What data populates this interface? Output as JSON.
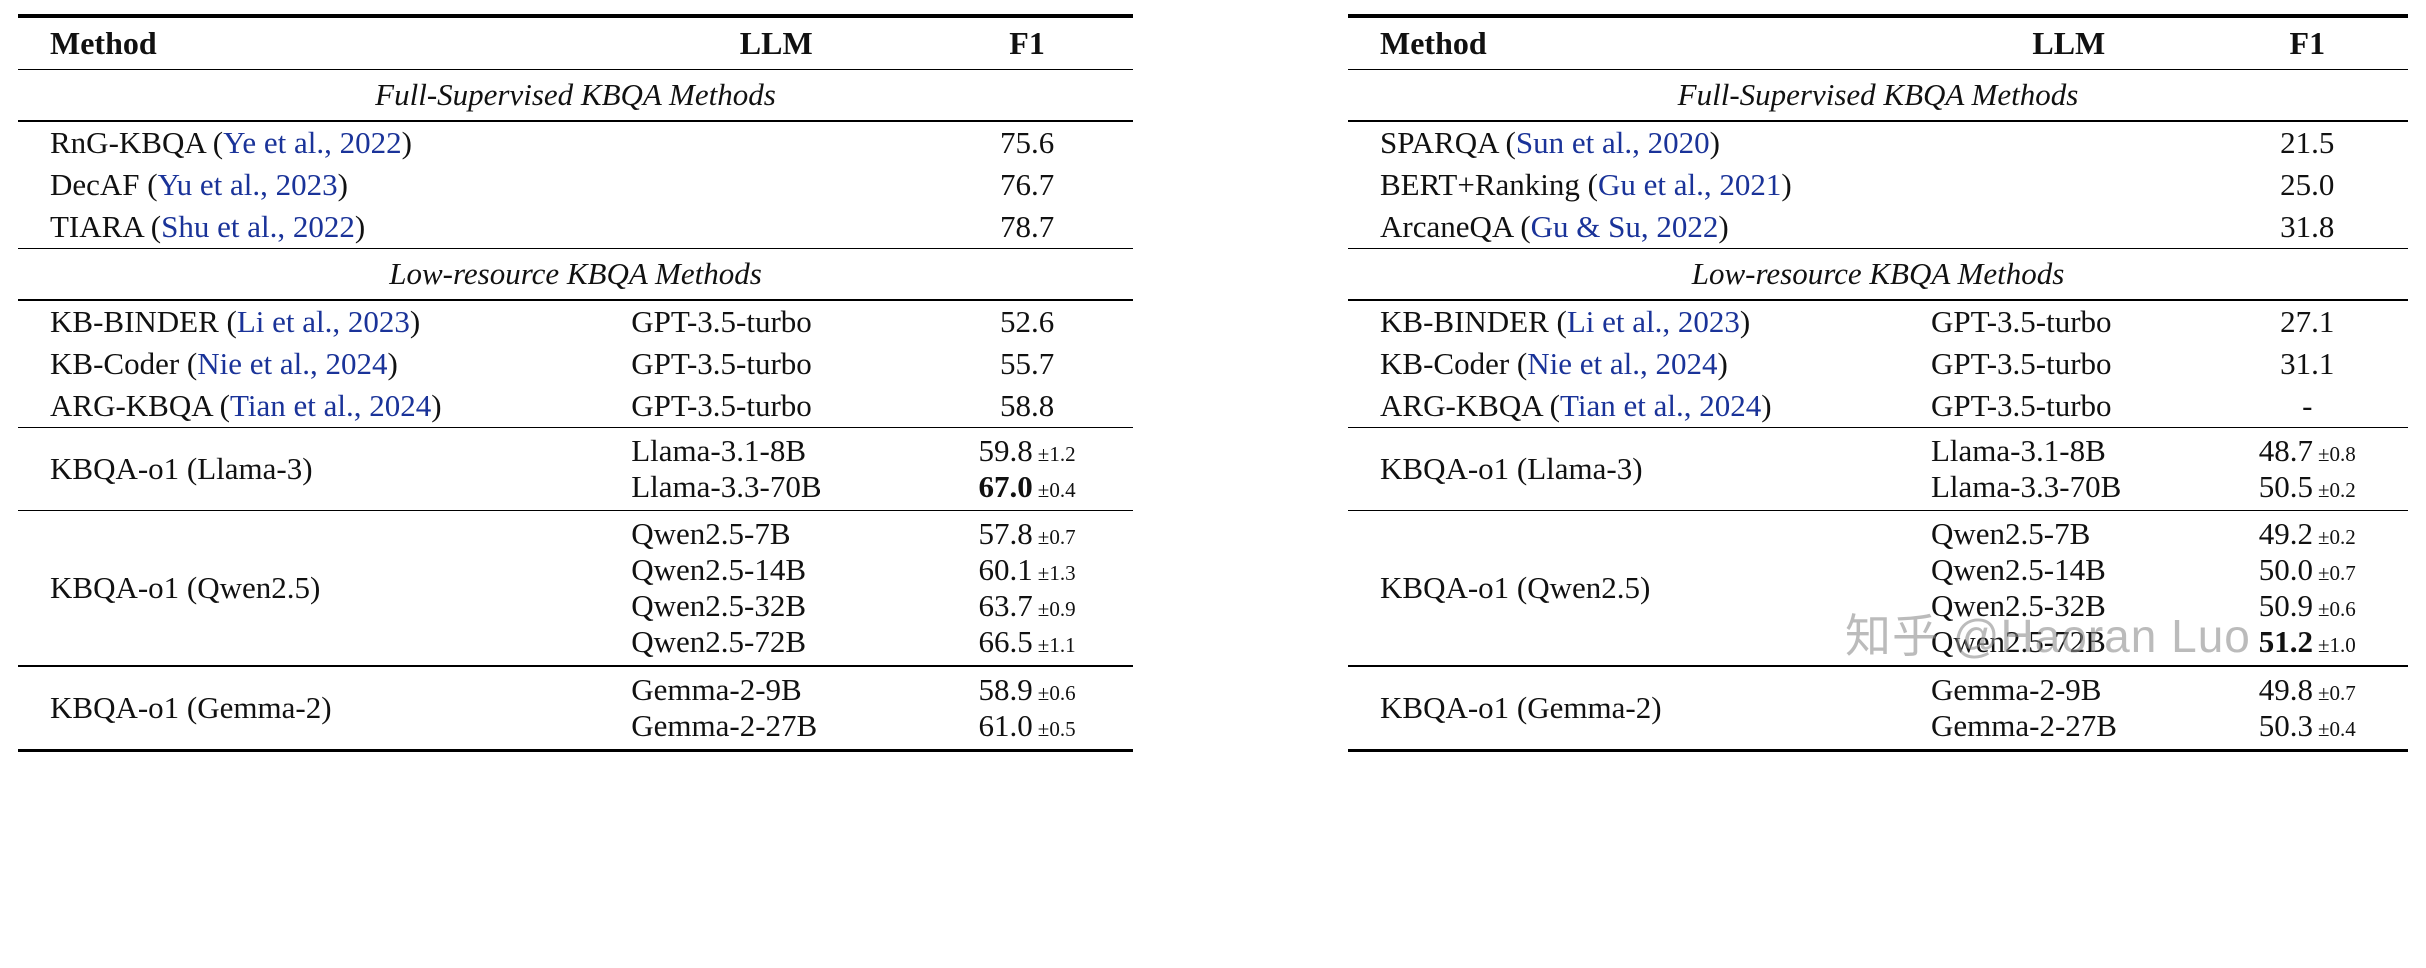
{
  "colors": {
    "cite": "#1a3399",
    "rule": "#000000"
  },
  "watermark": {
    "text": "知乎 @Haoran Luo"
  },
  "tables": [
    {
      "id": "left",
      "headers": [
        "Method",
        "LLM",
        "F1"
      ],
      "sections": [
        {
          "type": "title",
          "text": "Full-Supervised KBQA Methods"
        },
        {
          "type": "rows",
          "rows": [
            {
              "method": "RnG-KBQA",
              "cite": "Ye et al., 2022",
              "llm": [],
              "f1": [
                {
                  "v": "75.6"
                }
              ]
            },
            {
              "method": "DecAF",
              "cite": "Yu et al., 2023",
              "llm": [],
              "f1": [
                {
                  "v": "76.7"
                }
              ]
            },
            {
              "method": "TIARA",
              "cite": "Shu et al., 2022",
              "llm": [],
              "f1": [
                {
                  "v": "78.7"
                }
              ]
            }
          ]
        },
        {
          "type": "title",
          "text": "Low-resource KBQA Methods"
        },
        {
          "type": "rows",
          "rows": [
            {
              "method": "KB-BINDER",
              "cite": "Li et al., 2023",
              "llm": [
                "GPT-3.5-turbo"
              ],
              "f1": [
                {
                  "v": "52.6"
                }
              ]
            },
            {
              "method": "KB-Coder",
              "cite": "Nie et al., 2024",
              "llm": [
                "GPT-3.5-turbo"
              ],
              "f1": [
                {
                  "v": "55.7"
                }
              ]
            },
            {
              "method": "ARG-KBQA",
              "cite": "Tian et al., 2024",
              "llm": [
                "GPT-3.5-turbo"
              ],
              "f1": [
                {
                  "v": "58.8"
                }
              ]
            }
          ]
        },
        {
          "type": "rows",
          "rows": [
            {
              "method": "KBQA-o1 (Llama-3)",
              "llm": [
                "Llama-3.1-8B",
                "Llama-3.3-70B"
              ],
              "f1": [
                {
                  "v": "59.8",
                  "pm": "±1.2"
                },
                {
                  "v": "67.0",
                  "pm": "±0.4",
                  "bold": true
                }
              ]
            }
          ]
        },
        {
          "type": "rows",
          "rows": [
            {
              "method": "KBQA-o1 (Qwen2.5)",
              "llm": [
                "Qwen2.5-7B",
                "Qwen2.5-14B",
                "Qwen2.5-32B",
                "Qwen2.5-72B"
              ],
              "f1": [
                {
                  "v": "57.8",
                  "pm": "±0.7"
                },
                {
                  "v": "60.1",
                  "pm": "±1.3"
                },
                {
                  "v": "63.7",
                  "pm": "±0.9"
                },
                {
                  "v": "66.5",
                  "pm": "±1.1"
                }
              ]
            }
          ]
        },
        {
          "type": "rows",
          "rows": [
            {
              "method": "KBQA-o1 (Gemma-2)",
              "llm": [
                "Gemma-2-9B",
                "Gemma-2-27B"
              ],
              "f1": [
                {
                  "v": "58.9",
                  "pm": "±0.6"
                },
                {
                  "v": "61.0",
                  "pm": "±0.5"
                }
              ]
            }
          ]
        }
      ]
    },
    {
      "id": "right",
      "headers": [
        "Method",
        "LLM",
        "F1"
      ],
      "sections": [
        {
          "type": "title",
          "text": "Full-Supervised KBQA Methods"
        },
        {
          "type": "rows",
          "rows": [
            {
              "method": "SPARQA",
              "cite": "Sun et al., 2020",
              "llm": [],
              "f1": [
                {
                  "v": "21.5"
                }
              ]
            },
            {
              "method": "BERT+Ranking",
              "cite": "Gu et al., 2021",
              "llm": [],
              "f1": [
                {
                  "v": "25.0"
                }
              ]
            },
            {
              "method": "ArcaneQA",
              "cite": "Gu & Su, 2022",
              "llm": [],
              "f1": [
                {
                  "v": "31.8"
                }
              ]
            }
          ]
        },
        {
          "type": "title",
          "text": "Low-resource KBQA Methods"
        },
        {
          "type": "rows",
          "rows": [
            {
              "method": "KB-BINDER",
              "cite": "Li et al., 2023",
              "llm": [
                "GPT-3.5-turbo"
              ],
              "f1": [
                {
                  "v": "27.1"
                }
              ]
            },
            {
              "method": "KB-Coder",
              "cite": "Nie et al., 2024",
              "llm": [
                "GPT-3.5-turbo"
              ],
              "f1": [
                {
                  "v": "31.1"
                }
              ]
            },
            {
              "method": "ARG-KBQA",
              "cite": "Tian et al., 2024",
              "llm": [
                "GPT-3.5-turbo"
              ],
              "f1": [
                {
                  "v": "-"
                }
              ]
            }
          ]
        },
        {
          "type": "rows",
          "rows": [
            {
              "method": "KBQA-o1 (Llama-3)",
              "llm": [
                "Llama-3.1-8B",
                "Llama-3.3-70B"
              ],
              "f1": [
                {
                  "v": "48.7",
                  "pm": "±0.8"
                },
                {
                  "v": "50.5",
                  "pm": "±0.2"
                }
              ]
            }
          ]
        },
        {
          "type": "rows",
          "rows": [
            {
              "method": "KBQA-o1 (Qwen2.5)",
              "llm": [
                "Qwen2.5-7B",
                "Qwen2.5-14B",
                "Qwen2.5-32B",
                "Qwen2.5-72B"
              ],
              "f1": [
                {
                  "v": "49.2",
                  "pm": "±0.2"
                },
                {
                  "v": "50.0",
                  "pm": "±0.7"
                },
                {
                  "v": "50.9",
                  "pm": "±0.6"
                },
                {
                  "v": "51.2",
                  "pm": "±1.0",
                  "bold": true
                }
              ]
            }
          ]
        },
        {
          "type": "rows",
          "rows": [
            {
              "method": "KBQA-o1 (Gemma-2)",
              "llm": [
                "Gemma-2-9B",
                "Gemma-2-27B"
              ],
              "f1": [
                {
                  "v": "49.8",
                  "pm": "±0.7"
                },
                {
                  "v": "50.3",
                  "pm": "±0.4"
                }
              ]
            }
          ]
        }
      ]
    }
  ]
}
